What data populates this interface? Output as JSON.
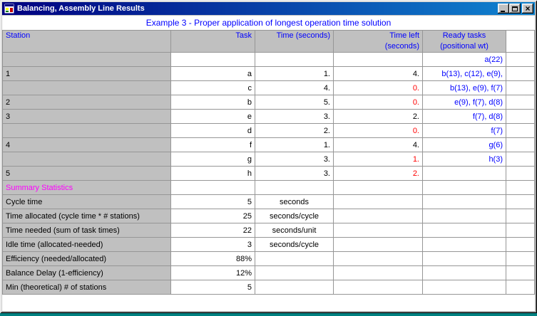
{
  "window": {
    "title": "Balancing, Assembly Line Results",
    "controls": {
      "close_glyph": "×"
    }
  },
  "subtitle": "Example 3 - Proper application of longest operation time solution",
  "colors": {
    "titlebar": "#000080",
    "header_text": "#0000FF",
    "ready_tasks_text": "#0000FF",
    "negative_flag_text": "#FF0000",
    "summary_heading_text": "#FF00FF",
    "header_bg": "#C0C0C0",
    "desktop": "#008080"
  },
  "table": {
    "headers": {
      "station": "Station",
      "task": "Task",
      "time": "Time (seconds)",
      "time_left_line1": "Time left",
      "time_left_line2": "(seconds)",
      "ready_line1": "Ready tasks",
      "ready_line2": "(positional wt)"
    },
    "rows": [
      {
        "c1": "",
        "c2": "",
        "c3": "",
        "c4": "",
        "c5": "a(22)"
      },
      {
        "c1": "1",
        "c2": "a",
        "c3": "1.",
        "c4": "4.",
        "c5": "b(13), c(12), e(9),"
      },
      {
        "c1": "",
        "c2": "c",
        "c3": "4.",
        "c4": "0.",
        "c4_red": true,
        "c5": "b(13), e(9), f(7)"
      },
      {
        "c1": "2",
        "c2": "b",
        "c3": "5.",
        "c4": "0.",
        "c4_red": true,
        "c5": "e(9), f(7), d(8)"
      },
      {
        "c1": "3",
        "c2": "e",
        "c3": "3.",
        "c4": "2.",
        "c5": "f(7), d(8)"
      },
      {
        "c1": "",
        "c2": "d",
        "c3": "2.",
        "c4": "0.",
        "c4_red": true,
        "c5": "f(7)"
      },
      {
        "c1": "4",
        "c2": "f",
        "c3": "1.",
        "c4": "4.",
        "c5": "g(6)"
      },
      {
        "c1": "",
        "c2": "g",
        "c3": "3.",
        "c4": "1.",
        "c4_red": true,
        "c5": "h(3)"
      },
      {
        "c1": "5",
        "c2": "h",
        "c3": "3.",
        "c4": "2.",
        "c4_red": true,
        "c5": ""
      },
      {
        "c1": "Summary Statistics",
        "label_color": "magenta",
        "c2": "",
        "c3": "",
        "c4": "",
        "c5": ""
      },
      {
        "c1": "Cycle time",
        "c2": "5",
        "c3": "seconds",
        "c3_center": true,
        "c4": "",
        "c5": ""
      },
      {
        "c1": "Time allocated (cycle time * # stations)",
        "c2": "25",
        "c3": "seconds/cycle",
        "c3_center": true,
        "c4": "",
        "c5": ""
      },
      {
        "c1": "Time needed (sum of task times)",
        "c2": "22",
        "c3": "seconds/unit",
        "c3_center": true,
        "c4": "",
        "c5": ""
      },
      {
        "c1": "Idle time (allocated-needed)",
        "c2": "3",
        "c3": "seconds/cycle",
        "c3_center": true,
        "c4": "",
        "c5": ""
      },
      {
        "c1": "Efficiency (needed/allocated)",
        "c2": "88%",
        "c3": "",
        "c4": "",
        "c5": ""
      },
      {
        "c1": "Balance Delay (1-efficiency)",
        "c2": "12%",
        "c3": "",
        "c4": "",
        "c5": ""
      },
      {
        "c1": "Min (theoretical) # of stations",
        "c2": "5",
        "c3": "",
        "c4": "",
        "c5": ""
      }
    ]
  }
}
